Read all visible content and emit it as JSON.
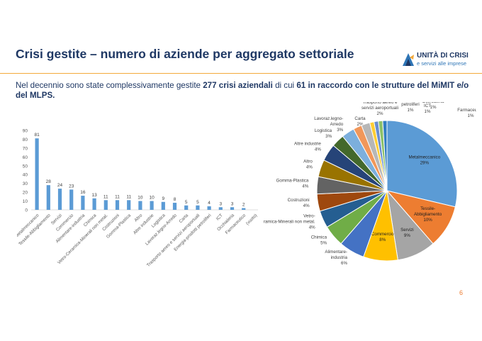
{
  "header": {
    "title": "Crisi gestite – numero di aziende per aggregato settoriale",
    "logo_name": "UNITÀ DI CRISI",
    "logo_sub": "e servizi alle imprese"
  },
  "intro": {
    "t1": "Nel decennio sono state complessivamente gestite ",
    "b1": "277 crisi aziendali",
    "t2": " di cui ",
    "b2": "61 in raccordo con le strutture del MiMIT e/o del MLPS."
  },
  "footer": {
    "page_number": "6"
  },
  "colors": {
    "title": "#1f3864",
    "accent_rule": "#f3a93c",
    "bar": "#5b9bd5"
  },
  "chart_data": [
    {
      "type": "bar",
      "categories": [
        "Metalmeccanico",
        "Tessile-Abbigliamento",
        "Servizi",
        "Commercio",
        "Alimentare-industria",
        "Chimica",
        "Vetro-Ceramica-Minerali non metal.",
        "Costruzioni",
        "Gomma-Plastica",
        "Altro",
        "Altre industrie",
        "Logistica",
        "Lavoraz.legno-Arredo",
        "Carta",
        "Trasporto aereo e servizi aeroportuali",
        "Energia-prodotti petroliferi",
        "ICT",
        "Occhialeria",
        "Farmaceutico",
        "(vuoto)"
      ],
      "values": [
        81,
        28,
        24,
        23,
        16,
        13,
        11,
        11,
        11,
        10,
        10,
        9,
        8,
        5,
        5,
        4,
        3,
        3,
        2,
        null
      ],
      "ylim": [
        0,
        90
      ],
      "yticks": [
        0,
        10,
        20,
        30,
        40,
        50,
        60,
        70,
        80,
        90
      ],
      "grid": false,
      "title": "",
      "xlabel": "",
      "ylabel": ""
    },
    {
      "type": "pie",
      "slices": [
        {
          "label": "Metalmeccanico",
          "pct": "29%",
          "value": 29,
          "color": "#5b9bd5"
        },
        {
          "label": "Tessile-Abbigliamento",
          "pct": "10%",
          "value": 10,
          "color": "#ed7d31"
        },
        {
          "label": "Servizi",
          "pct": "9%",
          "value": 9,
          "color": "#a5a5a5"
        },
        {
          "label": "Commercio",
          "pct": "8%",
          "value": 8,
          "color": "#ffc000"
        },
        {
          "label": "Alimentare-industria",
          "pct": "6%",
          "value": 6,
          "color": "#4472c4"
        },
        {
          "label": "Chimica",
          "pct": "5%",
          "value": 5,
          "color": "#70ad47"
        },
        {
          "label": "Vetro-Ceramica-Minerali non metal.",
          "pct": "4%",
          "value": 4,
          "color": "#255e91"
        },
        {
          "label": "Costruzioni",
          "pct": "4%",
          "value": 4,
          "color": "#9e480e"
        },
        {
          "label": "Gomma-Plastica",
          "pct": "4%",
          "value": 4,
          "color": "#636363"
        },
        {
          "label": "Altro",
          "pct": "4%",
          "value": 4,
          "color": "#997300"
        },
        {
          "label": "Altre industrie",
          "pct": "4%",
          "value": 4,
          "color": "#264478"
        },
        {
          "label": "Logistica",
          "pct": "3%",
          "value": 3,
          "color": "#43682b"
        },
        {
          "label": "Lavoraz.legno-Arredo",
          "pct": "3%",
          "value": 3,
          "color": "#7cafdd"
        },
        {
          "label": "Carta",
          "pct": "2%",
          "value": 2,
          "color": "#f1975a"
        },
        {
          "label": "Trasporto aereo e servizi aeroportuali",
          "pct": "2%",
          "value": 2,
          "color": "#b7b7b7"
        },
        {
          "label": "Energia-prodotti petroliferi",
          "pct": "1%",
          "value": 1,
          "color": "#ffcd33"
        },
        {
          "label": "ICT",
          "pct": "1%",
          "value": 1,
          "color": "#698ed0"
        },
        {
          "label": "Occhialeria",
          "pct": "1%",
          "value": 1,
          "color": "#8cc168"
        },
        {
          "label": "Farmaceutico",
          "pct": "1%",
          "value": 1,
          "color": "#327dc2"
        }
      ]
    }
  ]
}
